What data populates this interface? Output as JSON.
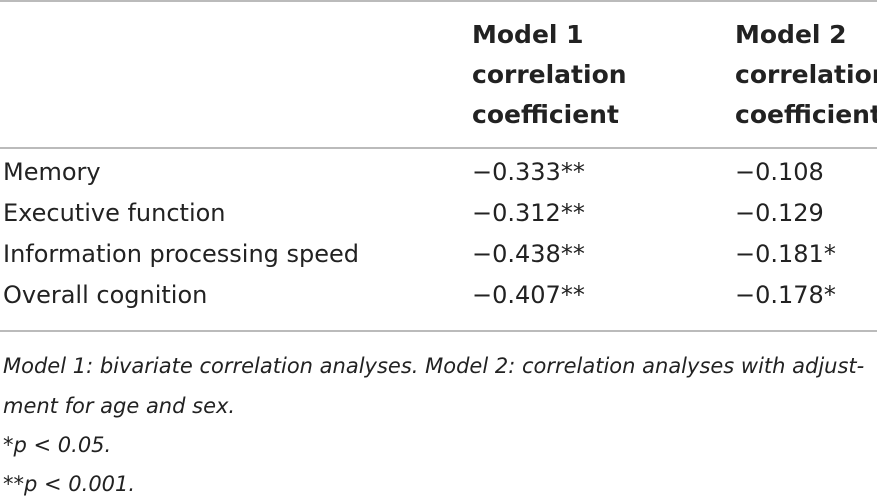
{
  "table": {
    "header": [
      [],
      [
        "Model 1",
        "correlation",
        "coefficient"
      ],
      [
        "Model 2",
        "correlation",
        "coefficient"
      ]
    ],
    "rows": [
      [
        "Memory",
        "−0.333**",
        "−0.108"
      ],
      [
        "Executive function",
        "−0.312**",
        "−0.129"
      ],
      [
        "Information processing speed",
        "−0.438**",
        "−0.181*"
      ],
      [
        "Overall cognition",
        "−0.407**",
        "−0.178*"
      ]
    ]
  },
  "notes": [
    "Model 1: bivariate correlation analyses. Model 2: correlation analyses with adjust-",
    "ment for age and sex.",
    "*p < 0.05.",
    "**p < 0.001."
  ]
}
